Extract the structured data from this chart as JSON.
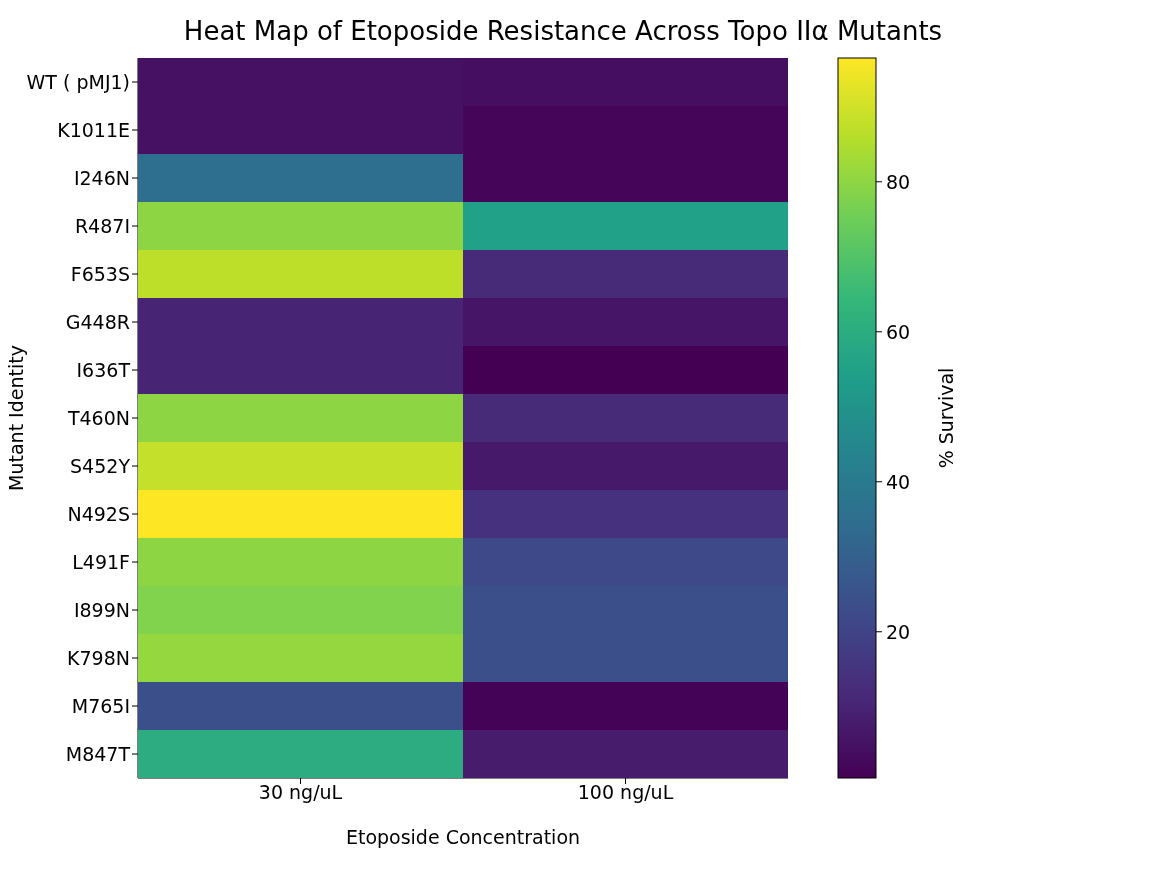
{
  "chart_data": {
    "type": "heatmap",
    "title": "Heat Map of Etoposide Resistance Across Topo IIα Mutants",
    "xlabel": "Etoposide Concentration",
    "ylabel": "Mutant Identity",
    "clabel": "% Survival",
    "categories": [
      "30 ng/uL",
      "100 ng/uL"
    ],
    "y_categories": [
      "WT ( pMJ1)",
      "K1011E",
      "I246N",
      "R487I",
      "F653S",
      "G448R",
      "I636T",
      "T460N",
      "S452Y",
      "N492S",
      "L491F",
      "I899N",
      "K798N",
      "M765I",
      "M847T"
    ],
    "cells": [
      [
        5,
        4
      ],
      [
        5,
        2
      ],
      [
        35,
        2
      ],
      [
        80,
        55
      ],
      [
        87,
        12
      ],
      [
        10,
        6
      ],
      [
        10,
        0.5
      ],
      [
        80,
        12
      ],
      [
        88,
        7
      ],
      [
        96.5,
        14
      ],
      [
        80,
        22
      ],
      [
        78,
        24
      ],
      [
        81,
        24
      ],
      [
        24,
        1
      ],
      [
        60,
        8
      ]
    ],
    "clim": [
      0.5,
      96.5
    ],
    "cticks": [
      20,
      40,
      60,
      80
    ]
  }
}
